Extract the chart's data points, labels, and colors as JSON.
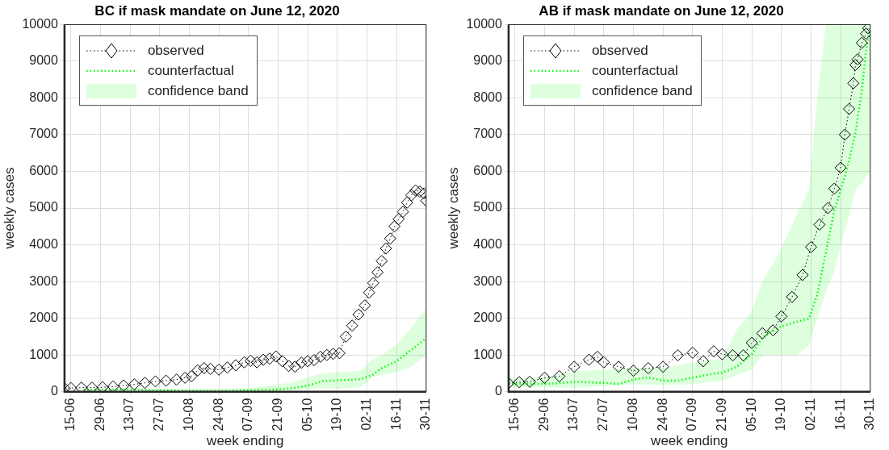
{
  "chart_data": [
    {
      "type": "line",
      "title": "BC if mask mandate on June 12, 2020",
      "xlabel": "week ending",
      "ylabel": "weekly cases",
      "xlim": [
        "2020-06-12",
        "2020-11-30"
      ],
      "xticks": [
        {
          "value": "2020-06-15",
          "label": "15-06"
        },
        {
          "value": "2020-06-29",
          "label": "29-06"
        },
        {
          "value": "2020-07-13",
          "label": "13-07"
        },
        {
          "value": "2020-07-27",
          "label": "27-07"
        },
        {
          "value": "2020-08-10",
          "label": "10-08"
        },
        {
          "value": "2020-08-24",
          "label": "24-08"
        },
        {
          "value": "2020-09-07",
          "label": "07-09"
        },
        {
          "value": "2020-09-21",
          "label": "21-09"
        },
        {
          "value": "2020-10-05",
          "label": "05-10"
        },
        {
          "value": "2020-10-19",
          "label": "19-10"
        },
        {
          "value": "2020-11-02",
          "label": "02-11"
        },
        {
          "value": "2020-11-16",
          "label": "16-11"
        },
        {
          "value": "2020-11-30",
          "label": "30-11"
        }
      ],
      "ylim": [
        0,
        10000
      ],
      "yticks": [
        0,
        1000,
        2000,
        3000,
        4000,
        5000,
        6000,
        7000,
        8000,
        9000,
        10000
      ],
      "grid": true,
      "legend": "top left",
      "series": [
        {
          "name": "observed",
          "type": "line",
          "color": "#000000",
          "marker": "diamond",
          "line_style": "dotted",
          "x": [
            "2020-06-12",
            "2020-06-15",
            "2020-06-20",
            "2020-06-25",
            "2020-06-30",
            "2020-07-05",
            "2020-07-10",
            "2020-07-15",
            "2020-07-20",
            "2020-07-25",
            "2020-07-30",
            "2020-08-04",
            "2020-08-08",
            "2020-08-11",
            "2020-08-14",
            "2020-08-17",
            "2020-08-20",
            "2020-08-24",
            "2020-08-28",
            "2020-09-01",
            "2020-09-05",
            "2020-09-08",
            "2020-09-11",
            "2020-09-14",
            "2020-09-17",
            "2020-09-20",
            "2020-09-23",
            "2020-09-26",
            "2020-09-29",
            "2020-10-02",
            "2020-10-05",
            "2020-10-08",
            "2020-10-11",
            "2020-10-14",
            "2020-10-17",
            "2020-10-20",
            "2020-10-23",
            "2020-10-26",
            "2020-10-29",
            "2020-11-01",
            "2020-11-03",
            "2020-11-05",
            "2020-11-07",
            "2020-11-09",
            "2020-11-11",
            "2020-11-13",
            "2020-11-15",
            "2020-11-17",
            "2020-11-19",
            "2020-11-21",
            "2020-11-23",
            "2020-11-25",
            "2020-11-27",
            "2020-11-29",
            "2020-11-30"
          ],
          "values": [
            90,
            100,
            110,
            110,
            120,
            140,
            170,
            200,
            240,
            280,
            300,
            330,
            380,
            420,
            580,
            640,
            620,
            600,
            660,
            720,
            800,
            840,
            800,
            870,
            900,
            960,
            830,
            700,
            680,
            790,
            830,
            860,
            950,
            1000,
            1030,
            1050,
            1500,
            1800,
            2100,
            2350,
            2700,
            2960,
            3250,
            3560,
            3900,
            4170,
            4500,
            4700,
            4900,
            5150,
            5350,
            5480,
            5450,
            5400,
            5200
          ]
        },
        {
          "name": "counterfactual",
          "type": "line",
          "color": "#00ff00",
          "marker": "none",
          "line_style": "dotted",
          "x": [
            "2020-06-21",
            "2020-07-01",
            "2020-07-13",
            "2020-07-27",
            "2020-08-10",
            "2020-08-24",
            "2020-09-07",
            "2020-09-21",
            "2020-09-28",
            "2020-10-05",
            "2020-10-12",
            "2020-10-19",
            "2020-10-30",
            "2020-11-05",
            "2020-11-09",
            "2020-11-16",
            "2020-11-23",
            "2020-11-30"
          ],
          "values": [
            50,
            60,
            60,
            40,
            30,
            20,
            40,
            60,
            100,
            160,
            290,
            310,
            340,
            470,
            640,
            830,
            1140,
            1450
          ],
          "lower": [
            20,
            20,
            30,
            20,
            20,
            20,
            20,
            30,
            40,
            60,
            100,
            80,
            120,
            400,
            450,
            530,
            680,
            990
          ],
          "upper": [
            80,
            80,
            90,
            70,
            60,
            80,
            90,
            200,
            250,
            400,
            500,
            530,
            570,
            900,
            1000,
            1290,
            1740,
            2270
          ]
        }
      ],
      "annotations": [
        "confidence band"
      ]
    },
    {
      "type": "line",
      "title": "AB if mask mandate on June 12, 2020",
      "xlabel": "week ending",
      "ylabel": "weekly cases",
      "xlim": [
        "2020-06-12",
        "2020-11-30"
      ],
      "xticks": [
        {
          "value": "2020-06-15",
          "label": "15-06"
        },
        {
          "value": "2020-06-29",
          "label": "29-06"
        },
        {
          "value": "2020-07-13",
          "label": "13-07"
        },
        {
          "value": "2020-07-27",
          "label": "27-07"
        },
        {
          "value": "2020-08-10",
          "label": "10-08"
        },
        {
          "value": "2020-08-24",
          "label": "24-08"
        },
        {
          "value": "2020-09-07",
          "label": "07-09"
        },
        {
          "value": "2020-09-21",
          "label": "21-09"
        },
        {
          "value": "2020-10-05",
          "label": "05-10"
        },
        {
          "value": "2020-10-19",
          "label": "19-10"
        },
        {
          "value": "2020-11-02",
          "label": "02-11"
        },
        {
          "value": "2020-11-16",
          "label": "16-11"
        },
        {
          "value": "2020-11-30",
          "label": "30-11"
        }
      ],
      "ylim": [
        0,
        10000
      ],
      "yticks": [
        0,
        1000,
        2000,
        3000,
        4000,
        5000,
        6000,
        7000,
        8000,
        9000,
        10000
      ],
      "grid": true,
      "legend": "top left",
      "series": [
        {
          "name": "observed",
          "type": "line",
          "color": "#000000",
          "marker": "diamond",
          "line_style": "dotted",
          "x": [
            "2020-06-12",
            "2020-06-17",
            "2020-06-22",
            "2020-06-29",
            "2020-07-06",
            "2020-07-13",
            "2020-07-20",
            "2020-07-24",
            "2020-07-27",
            "2020-08-03",
            "2020-08-10",
            "2020-08-17",
            "2020-08-24",
            "2020-08-31",
            "2020-09-07",
            "2020-09-12",
            "2020-09-17",
            "2020-09-21",
            "2020-09-26",
            "2020-10-01",
            "2020-10-05",
            "2020-10-10",
            "2020-10-15",
            "2020-10-19",
            "2020-10-24",
            "2020-10-29",
            "2020-11-02",
            "2020-11-06",
            "2020-11-10",
            "2020-11-13",
            "2020-11-16",
            "2020-11-18",
            "2020-11-20",
            "2020-11-22",
            "2020-11-23",
            "2020-11-24",
            "2020-11-26",
            "2020-11-28",
            "2020-11-29"
          ],
          "values": [
            230,
            260,
            270,
            380,
            420,
            680,
            870,
            950,
            800,
            680,
            570,
            640,
            680,
            990,
            1060,
            830,
            1100,
            1020,
            990,
            990,
            1330,
            1590,
            1670,
            2050,
            2580,
            3180,
            3940,
            4550,
            5000,
            5530,
            6100,
            7000,
            7700,
            8400,
            8900,
            9050,
            9500,
            9750,
            9900
          ]
        },
        {
          "name": "counterfactual",
          "type": "line",
          "color": "#00ff00",
          "marker": "none",
          "line_style": "dotted",
          "x": [
            "2020-06-12",
            "2020-06-29",
            "2020-07-06",
            "2020-07-13",
            "2020-07-27",
            "2020-08-03",
            "2020-08-10",
            "2020-08-17",
            "2020-08-24",
            "2020-08-31",
            "2020-09-07",
            "2020-09-14",
            "2020-09-21",
            "2020-09-28",
            "2020-10-05",
            "2020-10-10",
            "2020-10-19",
            "2020-10-26",
            "2020-11-01",
            "2020-11-05",
            "2020-11-09",
            "2020-11-13",
            "2020-11-17",
            "2020-11-20",
            "2020-11-23",
            "2020-11-26",
            "2020-11-28",
            "2020-11-30"
          ],
          "values": [
            210,
            210,
            230,
            270,
            240,
            210,
            330,
            390,
            300,
            300,
            380,
            460,
            520,
            680,
            1020,
            1480,
            1780,
            1900,
            1990,
            2650,
            3790,
            4930,
            5680,
            6300,
            7050,
            8200,
            9300,
            9950
          ],
          "lower": [
            120,
            120,
            110,
            100,
            150,
            170,
            200,
            190,
            180,
            190,
            200,
            250,
            300,
            450,
            600,
            1000,
            1000,
            1000,
            1250,
            2000,
            2700,
            3300,
            4200,
            4800,
            5500,
            5700,
            5850,
            6000
          ],
          "upper": [
            350,
            400,
            480,
            550,
            600,
            620,
            650,
            650,
            650,
            720,
            800,
            850,
            900,
            1700,
            2200,
            3000,
            3900,
            4800,
            5500,
            8000,
            10000,
            10000,
            10000,
            10000,
            10000,
            10000,
            10000,
            10000
          ]
        }
      ],
      "annotations": [
        "confidence band"
      ]
    }
  ]
}
